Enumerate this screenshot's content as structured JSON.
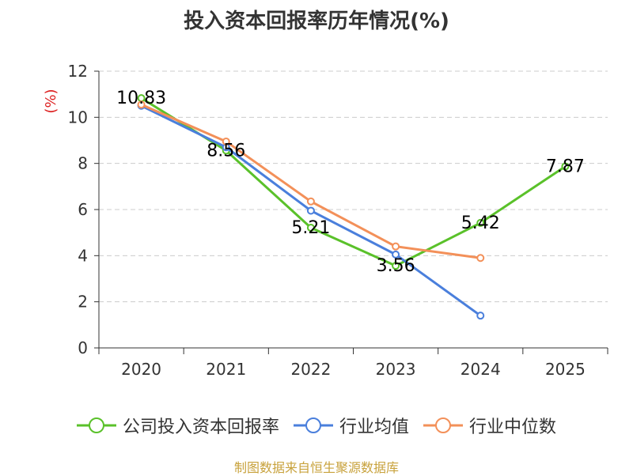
{
  "chart_data": {
    "type": "line",
    "title": "投入资本回报率历年情况(%)",
    "ylabel": "(%)",
    "xlabel": "",
    "ylim": [
      0,
      12
    ],
    "yticks": [
      0,
      2,
      4,
      6,
      8,
      10,
      12
    ],
    "grid": true,
    "categories": [
      "2020",
      "2021",
      "2022",
      "2023",
      "2024",
      "2025"
    ],
    "series": [
      {
        "name": "公司投入资本回报率",
        "color": "#5ac12a",
        "values": [
          10.83,
          8.56,
          5.21,
          3.56,
          5.42,
          7.87
        ],
        "labels": [
          "10.83",
          "8.56",
          "5.21",
          "3.56",
          "5.42",
          "7.87"
        ]
      },
      {
        "name": "行业均值",
        "color": "#4a7fdc",
        "values": [
          10.5,
          8.7,
          5.95,
          4.05,
          1.4,
          null
        ]
      },
      {
        "name": "行业中位数",
        "color": "#f39059",
        "values": [
          10.55,
          8.95,
          6.35,
          4.4,
          3.9,
          null
        ]
      }
    ],
    "legend_position": "bottom"
  },
  "source": "制图数据来自恒生聚源数据库"
}
